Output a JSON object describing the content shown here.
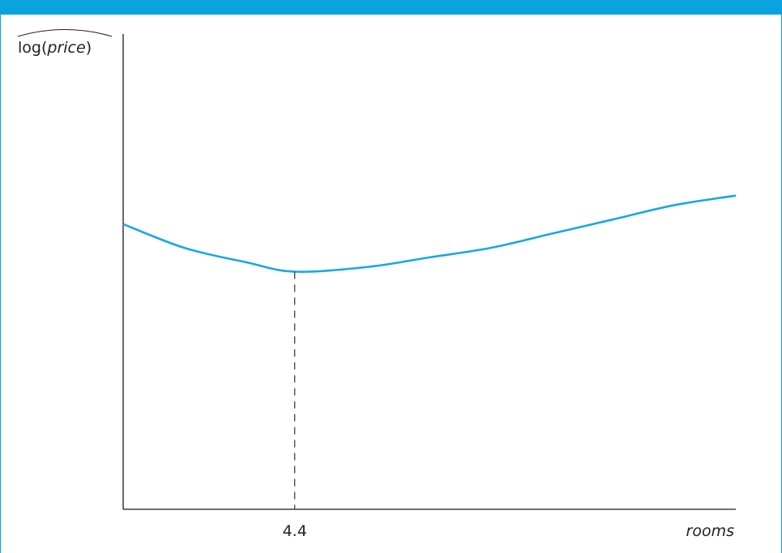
{
  "chart_data": {
    "type": "line",
    "ylabel": {
      "prefix": "log(",
      "variable": "price",
      "suffix": ")"
    },
    "xlabel": "rooms",
    "x_ticks": [
      "4.4"
    ],
    "turning_point": {
      "x": 4.4,
      "label": "4.4"
    },
    "xlim": [
      3.0,
      8.0
    ],
    "ylim": [
      0.0,
      1.0
    ],
    "series": [
      {
        "x": [
          3.0,
          3.5,
          4.0,
          4.4,
          5.0,
          5.5,
          6.0,
          6.5,
          7.0,
          7.5,
          8.0
        ],
        "values": [
          0.6,
          0.55,
          0.52,
          0.5,
          0.51,
          0.53,
          0.55,
          0.58,
          0.61,
          0.64,
          0.66
        ]
      }
    ],
    "colors": {
      "line": "#1aa7e1",
      "axis": "#1a1a1a",
      "dashed": "#333333",
      "frame": "#0aa3e0"
    }
  }
}
